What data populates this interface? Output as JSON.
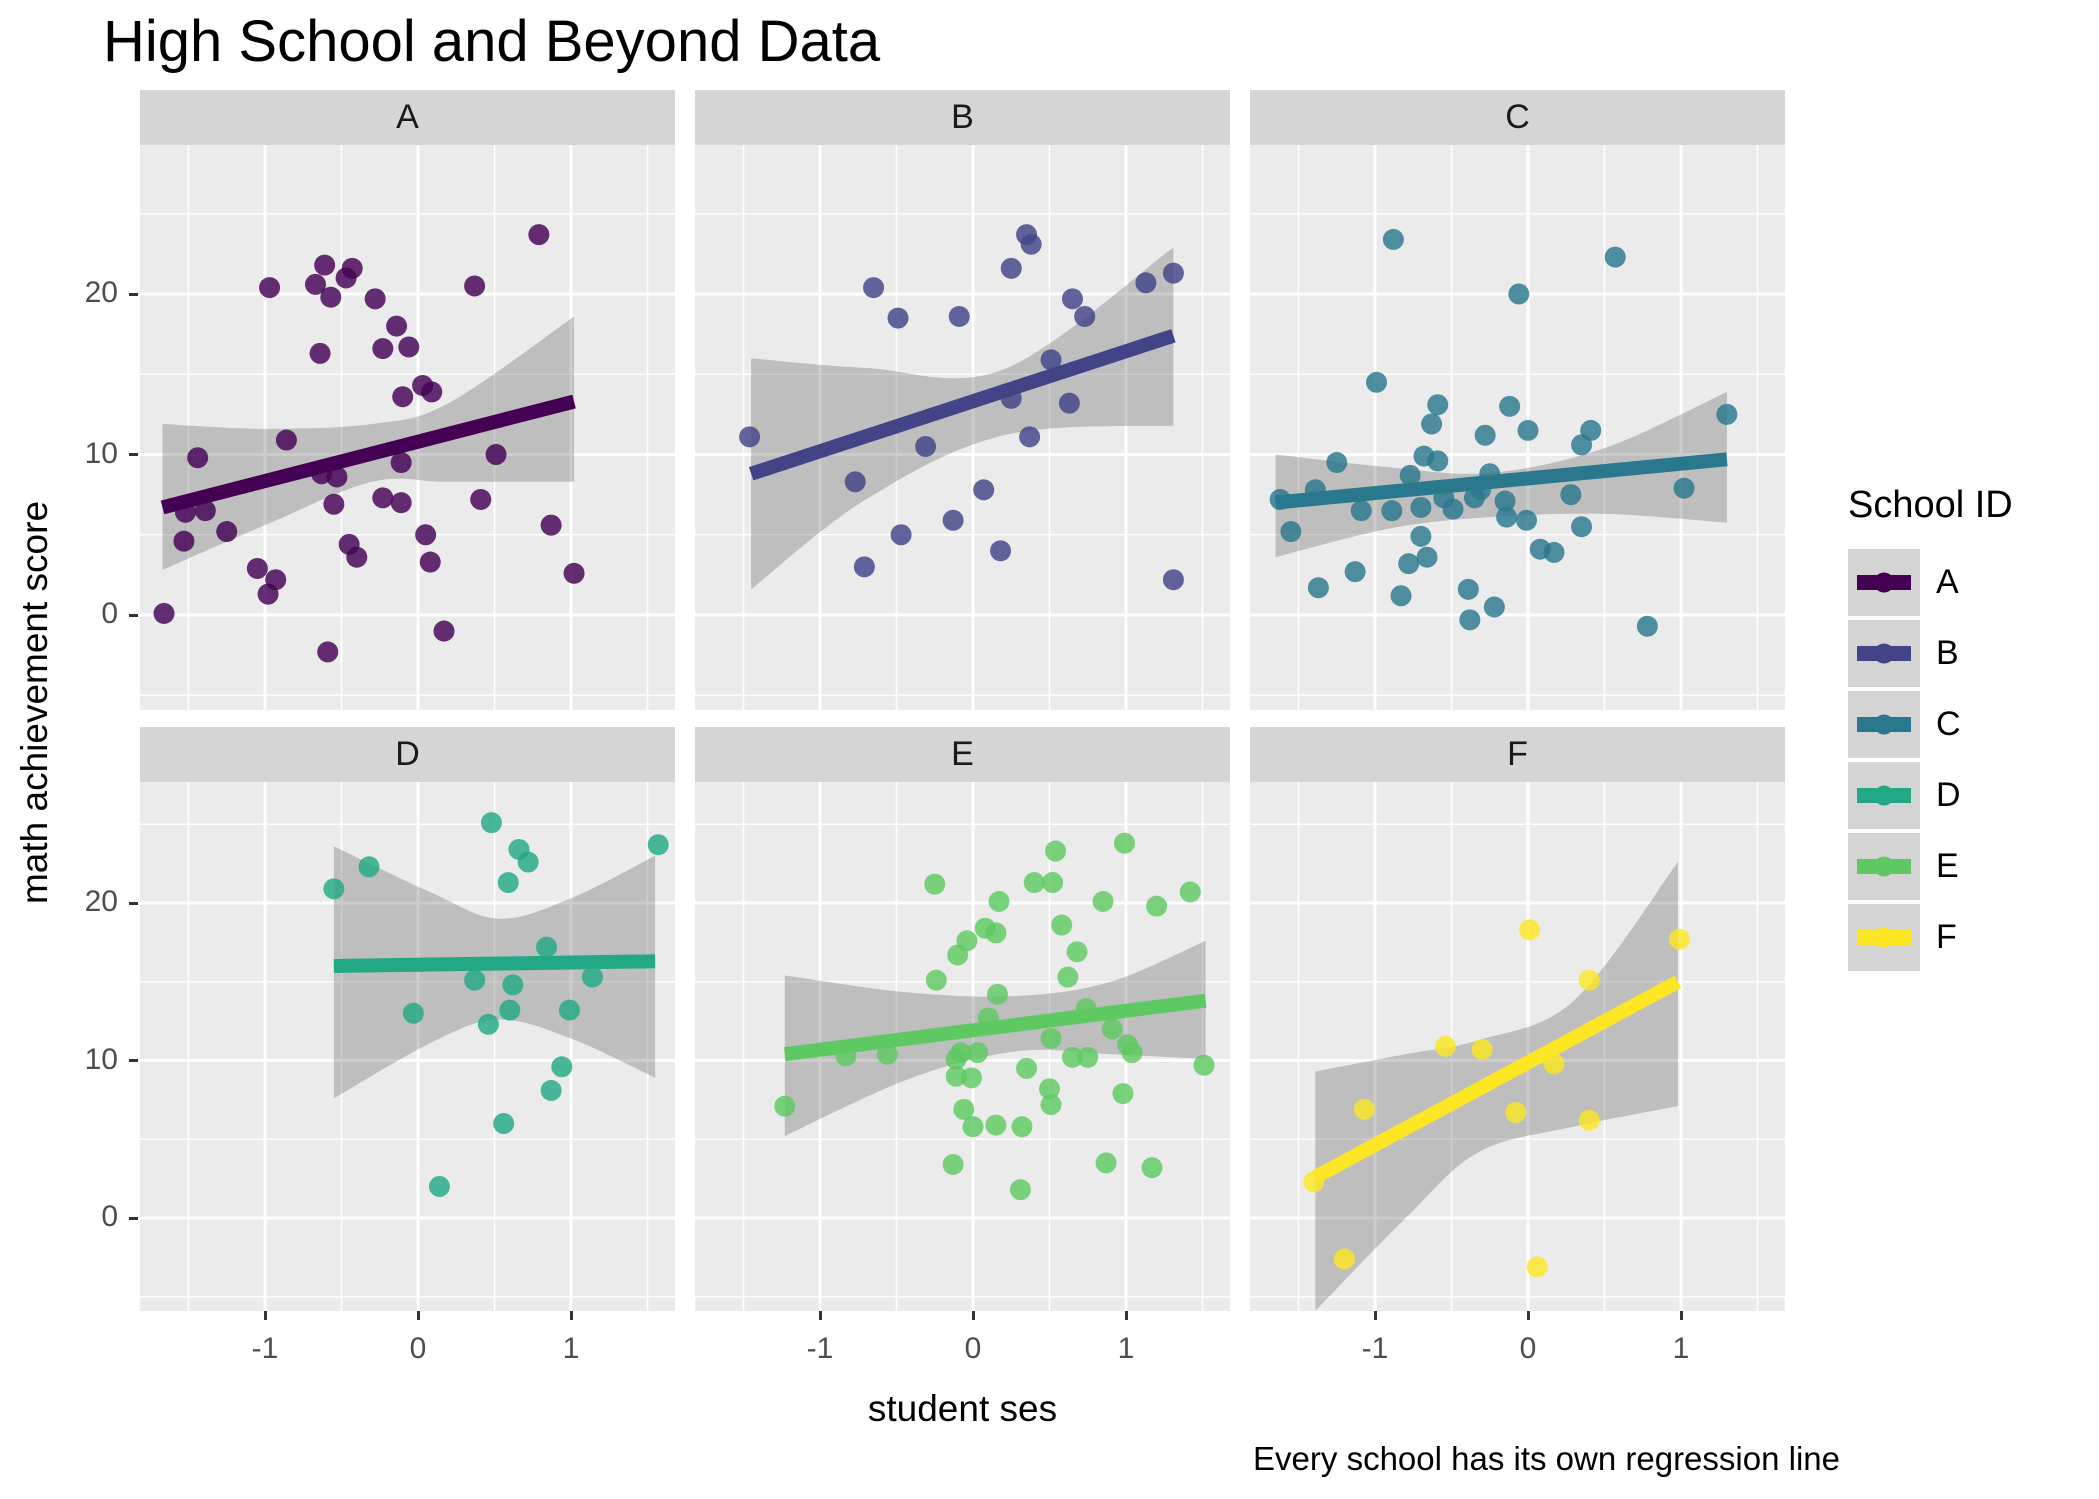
{
  "chart_data": {
    "type": "scatter",
    "title": "High School and Beyond Data",
    "xlabel": "student ses",
    "ylabel": "math achievement score",
    "caption": "Every school has its own regression line",
    "legend_title": "School ID",
    "x_tick_labels": [
      "-1",
      "0",
      "1"
    ],
    "x_tick_values": [
      -1,
      0,
      1
    ],
    "y_tick_labels": [
      "20",
      "10",
      "0"
    ],
    "y_tick_values": [
      20,
      10,
      0
    ],
    "xlim": [
      -1.82,
      1.68
    ],
    "ylim_row1": [
      -5.9,
      29.3
    ],
    "ylim_row2": [
      -5.9,
      27.7
    ],
    "grid": "on",
    "legend_position": "right",
    "panel_background": "#ebebeb",
    "strip_background": "#d5d5d5",
    "ribbon_color": "rgba(100,100,100,0.33)",
    "panels": [
      {
        "id": "A",
        "color": "#440154",
        "line": {
          "x1": -1.67,
          "y1": 6.7,
          "x2": 1.02,
          "y2": 13.3
        },
        "ribbon": [
          [
            -1.67,
            11.9,
            2.8
          ],
          [
            -1.0,
            11.6,
            5.6
          ],
          [
            -0.3,
            11.9,
            8.3
          ],
          [
            0.2,
            13.2,
            8.3
          ],
          [
            1.02,
            18.6,
            8.3
          ]
        ],
        "points": [
          [
            0.79,
            23.7
          ],
          [
            -0.61,
            21.8
          ],
          [
            -0.43,
            21.6
          ],
          [
            -0.97,
            20.4
          ],
          [
            -0.67,
            20.6
          ],
          [
            -0.47,
            21.0
          ],
          [
            -0.57,
            19.8
          ],
          [
            0.37,
            20.5
          ],
          [
            -0.28,
            19.7
          ],
          [
            -0.14,
            18.0
          ],
          [
            -0.06,
            16.7
          ],
          [
            -0.23,
            16.6
          ],
          [
            -0.64,
            16.3
          ],
          [
            0.03,
            14.3
          ],
          [
            0.09,
            13.9
          ],
          [
            -0.1,
            13.6
          ],
          [
            -0.86,
            10.9
          ],
          [
            -1.44,
            9.8
          ],
          [
            0.51,
            10.0
          ],
          [
            -0.11,
            9.5
          ],
          [
            -0.63,
            8.8
          ],
          [
            -0.53,
            8.6
          ],
          [
            -1.52,
            6.4
          ],
          [
            -1.39,
            6.5
          ],
          [
            -0.55,
            6.9
          ],
          [
            -0.23,
            7.3
          ],
          [
            -0.11,
            7.0
          ],
          [
            0.41,
            7.2
          ],
          [
            -1.53,
            4.6
          ],
          [
            -1.25,
            5.2
          ],
          [
            0.87,
            5.6
          ],
          [
            0.05,
            5.0
          ],
          [
            -0.45,
            4.4
          ],
          [
            -0.4,
            3.6
          ],
          [
            0.08,
            3.3
          ],
          [
            -1.05,
            2.9
          ],
          [
            -0.93,
            2.2
          ],
          [
            -0.98,
            1.3
          ],
          [
            1.02,
            2.6
          ],
          [
            -1.66,
            0.1
          ],
          [
            0.17,
            -1.0
          ],
          [
            -0.59,
            -2.3
          ]
        ]
      },
      {
        "id": "B",
        "color": "#414487",
        "line": {
          "x1": -1.45,
          "y1": 8.8,
          "x2": 1.31,
          "y2": 17.4
        },
        "ribbon": [
          [
            -1.45,
            16.0,
            1.6
          ],
          [
            -0.7,
            15.4,
            7.2
          ],
          [
            0.2,
            15.3,
            11.2
          ],
          [
            1.31,
            22.9,
            11.8
          ]
        ],
        "points": [
          [
            0.35,
            23.7
          ],
          [
            0.38,
            23.1
          ],
          [
            0.25,
            21.6
          ],
          [
            1.31,
            21.3
          ],
          [
            1.13,
            20.7
          ],
          [
            -0.65,
            20.4
          ],
          [
            0.65,
            19.7
          ],
          [
            0.73,
            18.6
          ],
          [
            -0.49,
            18.5
          ],
          [
            -0.09,
            18.6
          ],
          [
            0.51,
            15.9
          ],
          [
            0.25,
            13.5
          ],
          [
            0.63,
            13.2
          ],
          [
            -1.46,
            11.1
          ],
          [
            -0.31,
            10.5
          ],
          [
            0.37,
            11.1
          ],
          [
            -0.77,
            8.3
          ],
          [
            0.07,
            7.8
          ],
          [
            -0.13,
            5.9
          ],
          [
            -0.47,
            5.0
          ],
          [
            0.18,
            4.0
          ],
          [
            -0.71,
            3.0
          ],
          [
            1.31,
            2.2
          ]
        ]
      },
      {
        "id": "C",
        "color": "#2a788e",
        "line": {
          "x1": -1.65,
          "y1": 7.0,
          "x2": 1.3,
          "y2": 9.7
        },
        "ribbon": [
          [
            -1.65,
            10.0,
            3.6
          ],
          [
            -0.9,
            9.2,
            5.4
          ],
          [
            -0.25,
            8.85,
            6.1
          ],
          [
            0.5,
            10.4,
            6.3
          ],
          [
            1.3,
            13.9,
            5.75
          ]
        ],
        "points": [
          [
            -0.88,
            23.4
          ],
          [
            0.57,
            22.3
          ],
          [
            -0.06,
            20.0
          ],
          [
            -0.99,
            14.5
          ],
          [
            -0.59,
            13.1
          ],
          [
            -0.63,
            11.9
          ],
          [
            -0.12,
            13.0
          ],
          [
            -0.28,
            11.2
          ],
          [
            0.0,
            11.5
          ],
          [
            0.41,
            11.5
          ],
          [
            0.35,
            10.6
          ],
          [
            1.3,
            12.5
          ],
          [
            -0.68,
            9.9
          ],
          [
            -0.59,
            9.6
          ],
          [
            -1.25,
            9.5
          ],
          [
            -0.77,
            8.7
          ],
          [
            -0.25,
            8.8
          ],
          [
            -1.39,
            7.8
          ],
          [
            -1.62,
            7.2
          ],
          [
            -1.09,
            6.5
          ],
          [
            -0.89,
            6.5
          ],
          [
            -0.7,
            6.7
          ],
          [
            -0.55,
            7.3
          ],
          [
            -0.49,
            6.6
          ],
          [
            -0.35,
            7.3
          ],
          [
            -0.31,
            7.8
          ],
          [
            -0.15,
            7.1
          ],
          [
            -0.14,
            6.1
          ],
          [
            -0.01,
            5.9
          ],
          [
            0.28,
            7.5
          ],
          [
            0.35,
            5.5
          ],
          [
            1.02,
            7.9
          ],
          [
            -1.55,
            5.2
          ],
          [
            -0.7,
            4.9
          ],
          [
            0.08,
            4.1
          ],
          [
            0.17,
            3.9
          ],
          [
            -0.78,
            3.2
          ],
          [
            -0.66,
            3.6
          ],
          [
            -1.13,
            2.7
          ],
          [
            -1.37,
            1.7
          ],
          [
            -0.83,
            1.2
          ],
          [
            -0.39,
            1.6
          ],
          [
            -0.22,
            0.5
          ],
          [
            -0.38,
            -0.3
          ],
          [
            0.78,
            -0.7
          ]
        ]
      },
      {
        "id": "D",
        "color": "#22a884",
        "line": {
          "x1": -0.55,
          "y1": 16.0,
          "x2": 1.55,
          "y2": 16.3
        },
        "ribbon": [
          [
            -0.55,
            23.6,
            7.6
          ],
          [
            0.1,
            20.6,
            11.2
          ],
          [
            0.53,
            19.0,
            12.6
          ],
          [
            1.0,
            20.3,
            11.4
          ],
          [
            1.55,
            23.0,
            8.9
          ]
        ],
        "points": [
          [
            0.48,
            25.1
          ],
          [
            0.66,
            23.4
          ],
          [
            0.72,
            22.6
          ],
          [
            1.57,
            23.7
          ],
          [
            -0.32,
            22.3
          ],
          [
            -0.55,
            20.9
          ],
          [
            0.59,
            21.3
          ],
          [
            0.84,
            17.2
          ],
          [
            0.37,
            15.1
          ],
          [
            0.62,
            14.8
          ],
          [
            1.14,
            15.3
          ],
          [
            -0.03,
            13.0
          ],
          [
            0.46,
            12.3
          ],
          [
            0.6,
            13.2
          ],
          [
            0.99,
            13.2
          ],
          [
            0.94,
            9.6
          ],
          [
            0.87,
            8.1
          ],
          [
            0.56,
            6.0
          ],
          [
            0.14,
            2.0
          ]
        ]
      },
      {
        "id": "E",
        "color": "#5ec962",
        "line": {
          "x1": -1.23,
          "y1": 10.4,
          "x2": 1.52,
          "y2": 13.8
        },
        "ribbon": [
          [
            -1.23,
            15.4,
            5.2
          ],
          [
            -0.4,
            14.3,
            8.9
          ],
          [
            0.3,
            14.1,
            10.6
          ],
          [
            0.9,
            15.0,
            10.4
          ],
          [
            1.52,
            17.6,
            10.1
          ]
        ],
        "points": [
          [
            0.99,
            23.8
          ],
          [
            0.54,
            23.3
          ],
          [
            -0.25,
            21.2
          ],
          [
            0.4,
            21.3
          ],
          [
            0.52,
            21.3
          ],
          [
            0.17,
            20.1
          ],
          [
            0.85,
            20.1
          ],
          [
            1.2,
            19.8
          ],
          [
            1.42,
            20.7
          ],
          [
            0.08,
            18.4
          ],
          [
            0.15,
            18.1
          ],
          [
            0.58,
            18.6
          ],
          [
            -0.04,
            17.6
          ],
          [
            -0.1,
            16.7
          ],
          [
            0.68,
            16.9
          ],
          [
            -0.24,
            15.1
          ],
          [
            0.62,
            15.3
          ],
          [
            0.16,
            14.2
          ],
          [
            0.1,
            12.7
          ],
          [
            0.74,
            13.3
          ],
          [
            0.91,
            12.0
          ],
          [
            0.51,
            11.4
          ],
          [
            -0.83,
            10.3
          ],
          [
            -0.56,
            10.4
          ],
          [
            -0.11,
            10.1
          ],
          [
            -0.08,
            10.5
          ],
          [
            0.03,
            10.5
          ],
          [
            0.65,
            10.2
          ],
          [
            0.75,
            10.2
          ],
          [
            1.01,
            11.0
          ],
          [
            1.04,
            10.5
          ],
          [
            1.51,
            9.7
          ],
          [
            -0.11,
            9.0
          ],
          [
            -0.01,
            8.9
          ],
          [
            0.35,
            9.5
          ],
          [
            0.5,
            8.2
          ],
          [
            0.51,
            7.2
          ],
          [
            0.98,
            7.9
          ],
          [
            -1.23,
            7.1
          ],
          [
            -0.06,
            6.9
          ],
          [
            0.0,
            5.8
          ],
          [
            0.15,
            5.9
          ],
          [
            0.32,
            5.8
          ],
          [
            -0.13,
            3.4
          ],
          [
            0.87,
            3.5
          ],
          [
            1.17,
            3.2
          ],
          [
            0.31,
            1.8
          ]
        ]
      },
      {
        "id": "F",
        "color": "#fde725",
        "line": {
          "x1": -1.39,
          "y1": 2.6,
          "x2": 0.98,
          "y2": 15.0
        },
        "ribbon": [
          [
            -1.39,
            9.3,
            -5.9
          ],
          [
            -0.8,
            10.4,
            0.0
          ],
          [
            -0.32,
            11.3,
            4.2
          ],
          [
            0.3,
            13.8,
            5.8
          ],
          [
            0.98,
            22.6,
            7.1
          ]
        ],
        "points": [
          [
            0.01,
            18.3
          ],
          [
            0.99,
            17.7
          ],
          [
            0.4,
            15.1
          ],
          [
            -0.54,
            10.9
          ],
          [
            -0.3,
            10.7
          ],
          [
            0.17,
            9.8
          ],
          [
            -1.07,
            6.9
          ],
          [
            -0.08,
            6.7
          ],
          [
            0.4,
            6.2
          ],
          [
            -1.4,
            2.3
          ],
          [
            -1.2,
            -2.6
          ],
          [
            0.06,
            -3.1
          ]
        ]
      }
    ],
    "legend_items": [
      {
        "label": "A",
        "color": "#440154"
      },
      {
        "label": "B",
        "color": "#414487"
      },
      {
        "label": "C",
        "color": "#2a788e"
      },
      {
        "label": "D",
        "color": "#22a884"
      },
      {
        "label": "E",
        "color": "#5ec962"
      },
      {
        "label": "F",
        "color": "#fde725"
      }
    ]
  }
}
